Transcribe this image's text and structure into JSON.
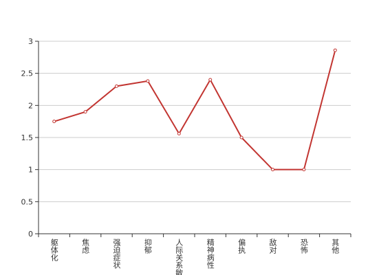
{
  "chart_data": {
    "type": "line",
    "categories": [
      "躯体化",
      "焦虑",
      "强迫症状",
      "抑郁",
      "人际关系敏感",
      "精神病性",
      "偏执",
      "敌对",
      "恐怖",
      "其他"
    ],
    "series": [
      {
        "color": "#c23531",
        "values": [
          1.75,
          1.9,
          2.3,
          2.38,
          1.56,
          2.4,
          1.5,
          1.0,
          1.0,
          2.86
        ]
      }
    ],
    "ylim": [
      0,
      3
    ],
    "yticks": [
      0,
      0.5,
      1,
      1.5,
      2,
      2.5,
      3
    ],
    "grid": true
  }
}
